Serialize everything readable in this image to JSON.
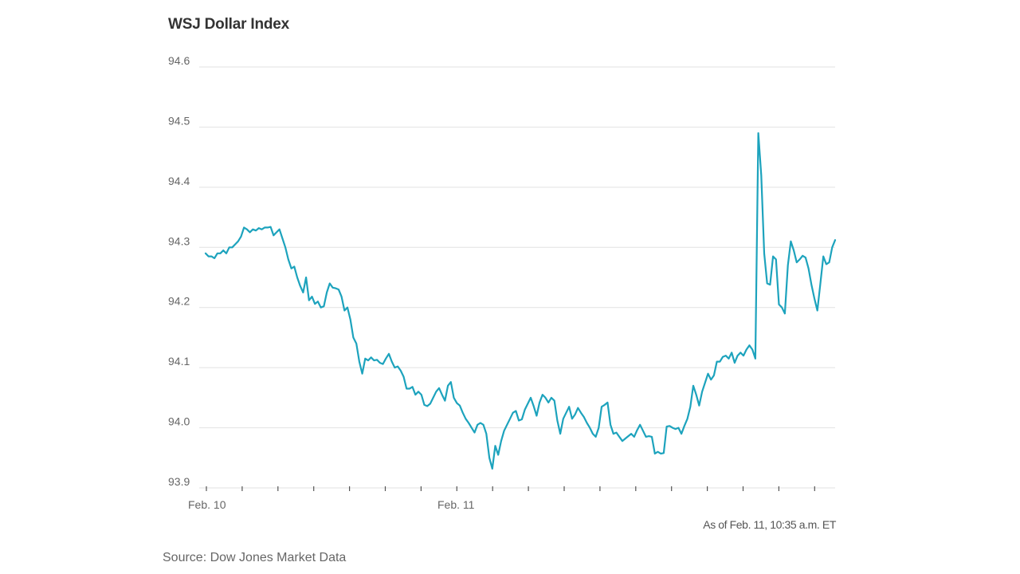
{
  "chart_data": {
    "type": "line",
    "title": "WSJ Dollar Index",
    "xlabel": "",
    "ylabel": "",
    "ylim": [
      93.9,
      94.6
    ],
    "y_ticks": [
      "94.6",
      "94.5",
      "94.4",
      "94.3",
      "94.2",
      "94.1",
      "94.0",
      "93.9"
    ],
    "x_tick_labels": [
      "Feb. 10",
      "Feb. 11"
    ],
    "grid": true,
    "line_color": "#1da3bd",
    "series": [
      {
        "values": [
          94.29,
          94.285,
          94.285,
          94.282,
          94.29,
          94.29,
          94.295,
          94.29,
          94.3,
          94.3,
          94.305,
          94.31,
          94.318,
          94.333,
          94.33,
          94.325,
          94.33,
          94.328,
          94.332,
          94.33,
          94.333,
          94.333,
          94.334,
          94.32,
          94.325,
          94.33,
          94.315,
          94.3,
          94.28,
          94.265,
          94.268,
          94.25,
          94.236,
          94.225,
          94.25,
          94.212,
          94.218,
          94.206,
          94.21,
          94.2,
          94.202,
          94.225,
          94.24,
          94.233,
          94.232,
          94.23,
          94.218,
          94.195,
          94.2,
          94.18,
          94.15,
          94.14,
          94.11,
          94.09,
          94.115,
          94.112,
          94.117,
          94.112,
          94.113,
          94.108,
          94.106,
          94.115,
          94.123,
          94.11,
          94.1,
          94.102,
          94.095,
          94.085,
          94.065,
          94.065,
          94.068,
          94.055,
          94.06,
          94.055,
          94.038,
          94.036,
          94.04,
          94.05,
          94.06,
          94.066,
          94.055,
          94.045,
          94.07,
          94.076,
          94.05,
          94.041,
          94.037,
          94.025,
          94.015,
          94.008,
          94.0,
          93.992,
          94.005,
          94.008,
          94.005,
          93.99,
          93.95,
          93.932,
          93.97,
          93.955,
          93.978,
          93.995,
          94.005,
          94.015,
          94.025,
          94.028,
          94.012,
          94.014,
          94.03,
          94.04,
          94.05,
          94.036,
          94.02,
          94.042,
          94.055,
          94.05,
          94.042,
          94.05,
          94.045,
          94.012,
          93.99,
          94.015,
          94.025,
          94.035,
          94.015,
          94.022,
          94.033,
          94.025,
          94.018,
          94.008,
          94.0,
          93.99,
          93.985,
          94.0,
          94.035,
          94.038,
          94.042,
          94.005,
          93.99,
          93.992,
          93.985,
          93.978,
          93.982,
          93.986,
          93.99,
          93.985,
          93.996,
          94.005,
          93.995,
          93.985,
          93.986,
          93.985,
          93.957,
          93.96,
          93.957,
          93.958,
          94.002,
          94.003,
          94.0,
          93.998,
          94.0,
          93.99,
          94.003,
          94.015,
          94.035,
          94.07,
          94.055,
          94.037,
          94.06,
          94.075,
          94.09,
          94.08,
          94.087,
          94.11,
          94.11,
          94.118,
          94.12,
          94.115,
          94.125,
          94.108,
          94.12,
          94.125,
          94.12,
          94.13,
          94.137,
          94.13,
          94.115,
          94.49,
          94.42,
          94.29,
          94.24,
          94.238,
          94.285,
          94.28,
          94.205,
          94.2,
          94.19,
          94.27,
          94.31,
          94.295,
          94.275,
          94.28,
          94.286,
          94.283,
          94.265,
          94.238,
          94.215,
          94.195,
          94.24,
          94.285,
          94.272,
          94.275,
          94.3,
          94.312
        ]
      }
    ]
  },
  "footer": {
    "timestamp": "As of Feb. 11, 10:35 a.m. ET",
    "source": "Source: Dow Jones Market Data"
  }
}
